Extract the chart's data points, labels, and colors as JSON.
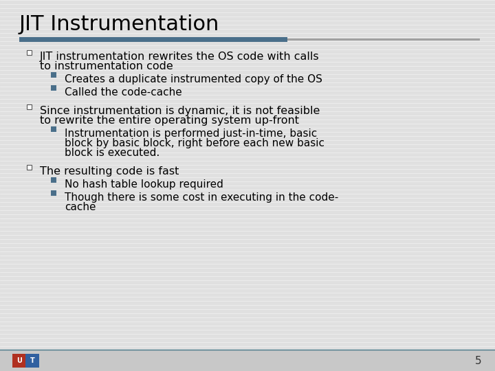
{
  "title": "JIT Instrumentation",
  "title_fontsize": 22,
  "title_color": "#000000",
  "background_color": "#e0e0e0",
  "header_bar_color1": "#4a6f8a",
  "bullet_square_color": "#4a6f8a",
  "page_number": "5",
  "items": [
    {
      "level": 1,
      "lines": [
        "JIT instrumentation rewrites the OS code with calls",
        "to instrumentation code"
      ],
      "fontsize": 11.5
    },
    {
      "level": 2,
      "lines": [
        "Creates a duplicate instrumented copy of the OS"
      ],
      "fontsize": 11
    },
    {
      "level": 2,
      "lines": [
        "Called the code-cache"
      ],
      "fontsize": 11
    },
    {
      "level": 1,
      "lines": [
        "Since instrumentation is dynamic, it is not feasible",
        "to rewrite the entire operating system up-front"
      ],
      "fontsize": 11.5
    },
    {
      "level": 2,
      "lines": [
        "Instrumentation is performed just-in-time, basic",
        "block by basic block, right before each new basic",
        "block is executed."
      ],
      "fontsize": 11
    },
    {
      "level": 1,
      "lines": [
        "The resulting code is fast"
      ],
      "fontsize": 11.5
    },
    {
      "level": 2,
      "lines": [
        "No hash table lookup required"
      ],
      "fontsize": 11
    },
    {
      "level": 2,
      "lines": [
        "Though there is some cost in executing in the code-",
        "cache"
      ],
      "fontsize": 11
    }
  ],
  "logo_bg_left": "#b03020",
  "logo_bg_right": "#3060a0"
}
